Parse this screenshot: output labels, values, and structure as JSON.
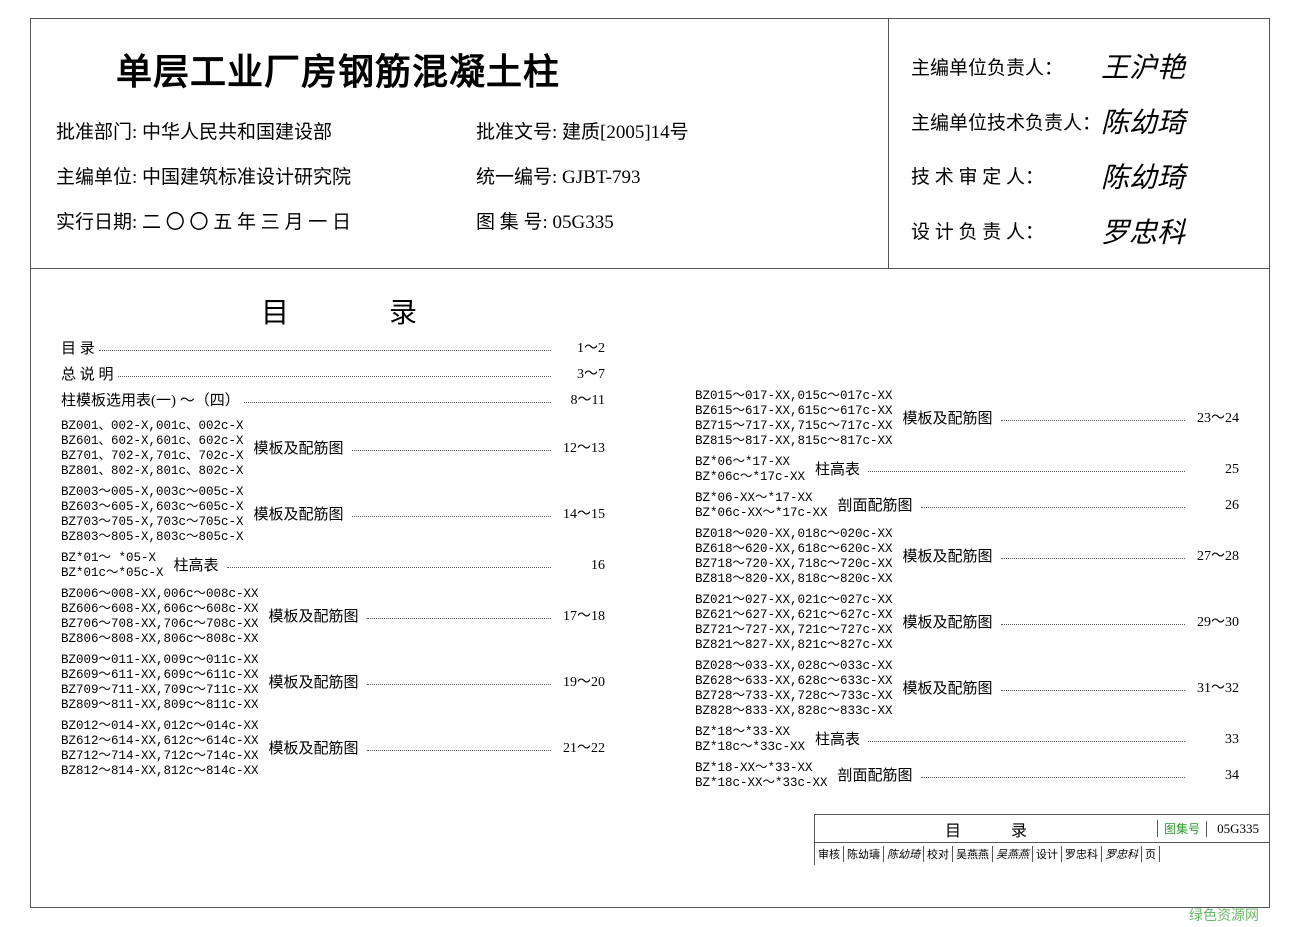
{
  "header": {
    "title": "单层工业厂房钢筋混凝土柱",
    "info": [
      {
        "label": "批准部门: 中华人民共和国建设部",
        "label2": "批准文号: 建质[2005]14号"
      },
      {
        "label": "主编单位: 中国建筑标准设计研究院",
        "label2": "统一编号: GJBT-793"
      },
      {
        "label": "实行日期: 二 〇 〇 五 年 三 月 一 日",
        "label2": "图 集 号: 05G335"
      }
    ],
    "signatures": [
      {
        "label": "主编单位负责人：",
        "sig": "王沪艳"
      },
      {
        "label": "主编单位技术负责人：",
        "sig": "陈幼琦"
      },
      {
        "label": "技 术 审 定 人：",
        "sig": "陈幼琦"
      },
      {
        "label": "设 计 负 责 人：",
        "sig": "罗忠科"
      }
    ]
  },
  "toc": {
    "heading": "目录",
    "left": [
      {
        "simple": "目 录",
        "page": "1～2"
      },
      {
        "simple": "总 说 明",
        "page": "3～7"
      },
      {
        "simple": "柱模板选用表(一) ～（四）",
        "page": "8～11"
      },
      {
        "block": "BZ001、002-X,001c、002c-X\nBZ601、602-X,601c、602c-X\nBZ701、702-X,701c、702c-X\nBZ801、802-X,801c、802c-X",
        "desc": "模板及配筋图",
        "page": "12～13"
      },
      {
        "block": "BZ003～005-X,003c～005c-X\nBZ603～605-X,603c～605c-X\nBZ703～705-X,703c～705c-X\nBZ803～805-X,803c～805c-X",
        "desc": "模板及配筋图",
        "page": "14～15"
      },
      {
        "block": "BZ*01～ *05-X\nBZ*01c～*05c-X",
        "desc": "柱高表",
        "page": "16"
      },
      {
        "block": "BZ006～008-XX,006c～008c-XX\nBZ606～608-XX,606c～608c-XX\nBZ706～708-XX,706c～708c-XX\nBZ806～808-XX,806c～808c-XX",
        "desc": "模板及配筋图",
        "page": "17～18"
      },
      {
        "block": "BZ009～011-XX,009c～011c-XX\nBZ609～611-XX,609c～611c-XX\nBZ709～711-XX,709c～711c-XX\nBZ809～811-XX,809c～811c-XX",
        "desc": "模板及配筋图",
        "page": "19～20"
      },
      {
        "block": "BZ012～014-XX,012c～014c-XX\nBZ612～614-XX,612c～614c-XX\nBZ712～714-XX,712c～714c-XX\nBZ812～814-XX,812c～814c-XX",
        "desc": "模板及配筋图",
        "page": "21～22"
      }
    ],
    "right": [
      {
        "block": "BZ015～017-XX,015c～017c-XX\nBZ615～617-XX,615c～617c-XX\nBZ715～717-XX,715c～717c-XX\nBZ815～817-XX,815c～817c-XX",
        "desc": "模板及配筋图",
        "page": "23～24"
      },
      {
        "block": "BZ*06～*17-XX\nBZ*06c～*17c-XX",
        "desc": "柱高表",
        "page": "25"
      },
      {
        "block": "BZ*06-XX～*17-XX\nBZ*06c-XX～*17c-XX",
        "desc": "剖面配筋图",
        "page": "26"
      },
      {
        "block": "BZ018～020-XX,018c～020c-XX\nBZ618～620-XX,618c～620c-XX\nBZ718～720-XX,718c～720c-XX\nBZ818～820-XX,818c～820c-XX",
        "desc": "模板及配筋图",
        "page": "27～28"
      },
      {
        "block": "BZ021～027-XX,021c～027c-XX\nBZ621～627-XX,621c～627c-XX\nBZ721～727-XX,721c～727c-XX\nBZ821～827-XX,821c～827c-XX",
        "desc": "模板及配筋图",
        "page": "29～30"
      },
      {
        "block": "BZ028～033-XX,028c～033c-XX\nBZ628～633-XX,628c～633c-XX\nBZ728～733-XX,728c～733c-XX\nBZ828～833-XX,828c～833c-XX",
        "desc": "模板及配筋图",
        "page": "31～32"
      },
      {
        "block": "BZ*18～*33-XX\nBZ*18c～*33c-XX",
        "desc": "柱高表",
        "page": "33"
      },
      {
        "block": "BZ*18-XX～*33-XX\nBZ*18c-XX～*33c-XX",
        "desc": "剖面配筋图",
        "page": "34"
      }
    ]
  },
  "footer": {
    "title": "目录",
    "code_label": "图集号",
    "code": "05G335",
    "cells": [
      "审核",
      "陈幼璹",
      "陈幼琦",
      "校对",
      "吴燕燕",
      "吴燕燕",
      "设计",
      "罗忠科",
      "罗忠科",
      "页"
    ]
  },
  "watermark": "绿色资源网"
}
